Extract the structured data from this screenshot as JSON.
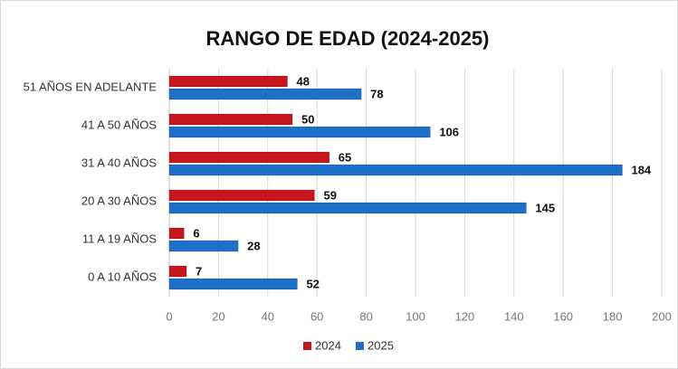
{
  "chart_data": {
    "type": "hbar",
    "title": "RANGO DE EDAD (2024-2025)",
    "categories": [
      "51 AÑOS EN ADELANTE",
      "41 A 50 AÑOS",
      "31 A 40 AÑOS",
      "20 A 30 AÑOS",
      "11 A 19 AÑOS",
      "0 A 10 AÑOS"
    ],
    "series": [
      {
        "name": "2024",
        "color": "#c8161d",
        "values": [
          48,
          50,
          65,
          59,
          6,
          7
        ]
      },
      {
        "name": "2025",
        "color": "#1e6fc8",
        "values": [
          78,
          106,
          184,
          145,
          28,
          52
        ]
      }
    ],
    "xlim": [
      0,
      200
    ],
    "xticks": [
      0,
      20,
      40,
      60,
      80,
      100,
      120,
      140,
      160,
      180,
      200
    ],
    "grid": true,
    "legend": "bottom"
  }
}
